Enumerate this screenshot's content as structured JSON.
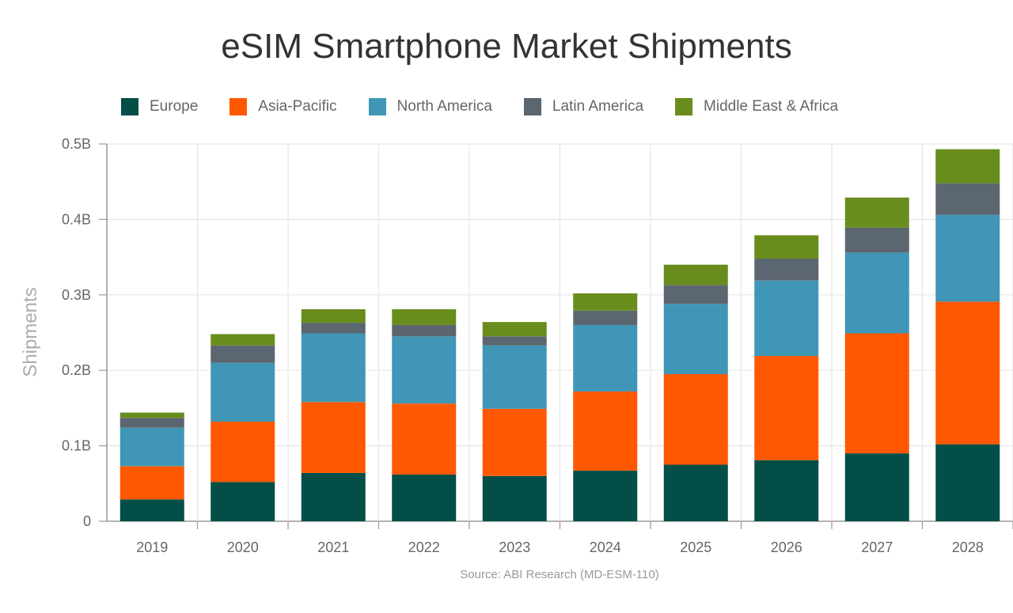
{
  "chart_data": {
    "type": "bar",
    "stacked": true,
    "title": "eSIM Smartphone Market Shipments",
    "xlabel": "",
    "ylabel": "Shipments",
    "ylim": [
      0,
      0.5
    ],
    "yticks": [
      {
        "v": 0,
        "label": "0"
      },
      {
        "v": 0.1,
        "label": "0.1B"
      },
      {
        "v": 0.2,
        "label": "0.2B"
      },
      {
        "v": 0.3,
        "label": "0.3B"
      },
      {
        "v": 0.4,
        "label": "0.4B"
      },
      {
        "v": 0.5,
        "label": "0.5B"
      }
    ],
    "grid": true,
    "legend": "top",
    "categories": [
      "2019",
      "2020",
      "2021",
      "2022",
      "2023",
      "2024",
      "2025",
      "2026",
      "2027",
      "2028"
    ],
    "series": [
      {
        "name": "Europe",
        "color": "#034f48",
        "values": [
          0.029,
          0.052,
          0.064,
          0.062,
          0.06,
          0.067,
          0.075,
          0.081,
          0.09,
          0.102
        ]
      },
      {
        "name": "Asia-Pacific",
        "color": "#ff5800",
        "values": [
          0.044,
          0.08,
          0.094,
          0.094,
          0.089,
          0.105,
          0.12,
          0.138,
          0.159,
          0.189
        ]
      },
      {
        "name": "North America",
        "color": "#4096b6",
        "values": [
          0.051,
          0.078,
          0.091,
          0.089,
          0.084,
          0.088,
          0.093,
          0.1,
          0.107,
          0.115
        ]
      },
      {
        "name": "Latin America",
        "color": "#5c6670",
        "values": [
          0.013,
          0.023,
          0.014,
          0.015,
          0.012,
          0.019,
          0.025,
          0.029,
          0.033,
          0.042
        ]
      },
      {
        "name": "Middle East & Africa",
        "color": "#688d1d",
        "values": [
          0.007,
          0.015,
          0.018,
          0.021,
          0.019,
          0.023,
          0.027,
          0.031,
          0.04,
          0.045
        ]
      }
    ],
    "source": "Source: ABI Research (MD-ESM-110)"
  }
}
